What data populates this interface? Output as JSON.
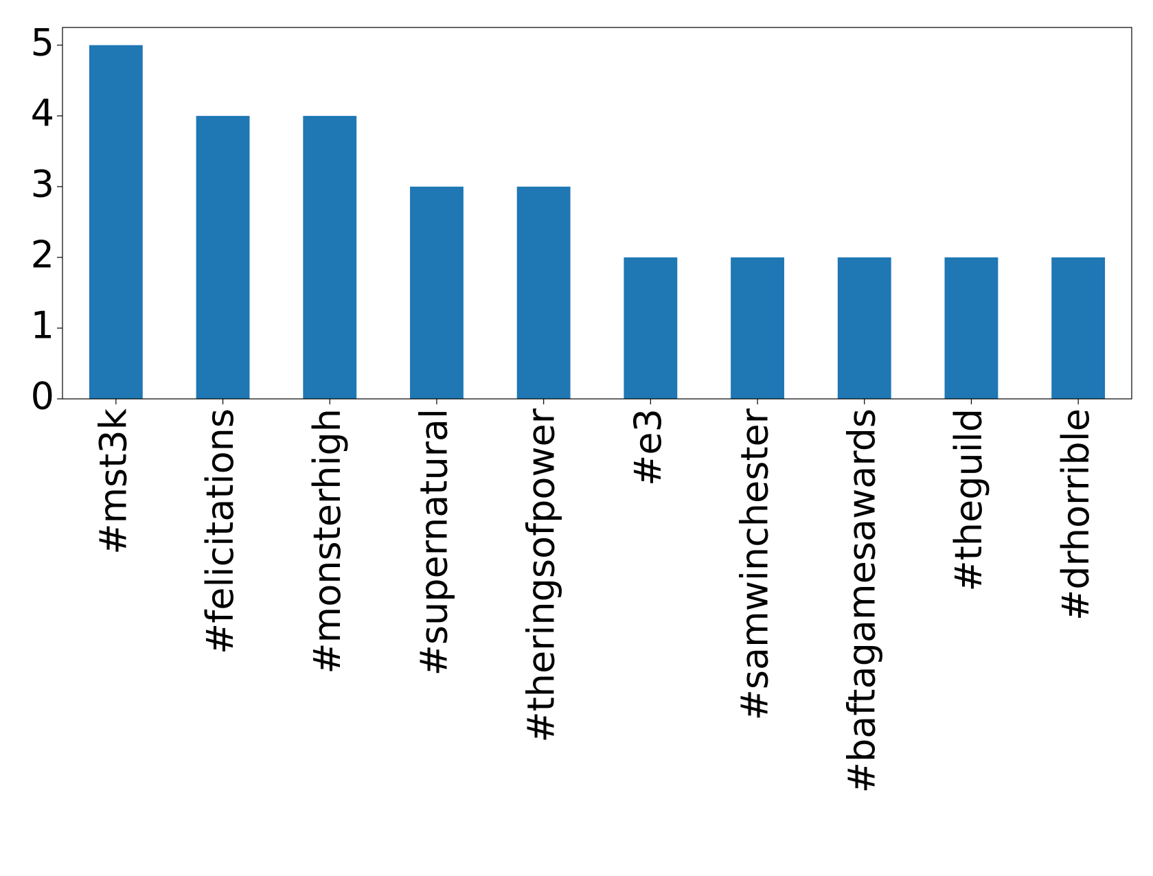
{
  "chart_data": {
    "type": "bar",
    "categories": [
      "#mst3k",
      "#felicitations",
      "#monsterhigh",
      "#supernatural",
      "#theringsofpower",
      "#e3",
      "#samwinchester",
      "#baftagamesawards",
      "#theguild",
      "#drhorrible"
    ],
    "values": [
      5,
      4,
      4,
      3,
      3,
      2,
      2,
      2,
      2,
      2
    ],
    "color": "#1f77b4",
    "ylim": [
      0,
      5.25
    ],
    "yticks": [
      0,
      1,
      2,
      3,
      4,
      5
    ],
    "grid": false
  }
}
